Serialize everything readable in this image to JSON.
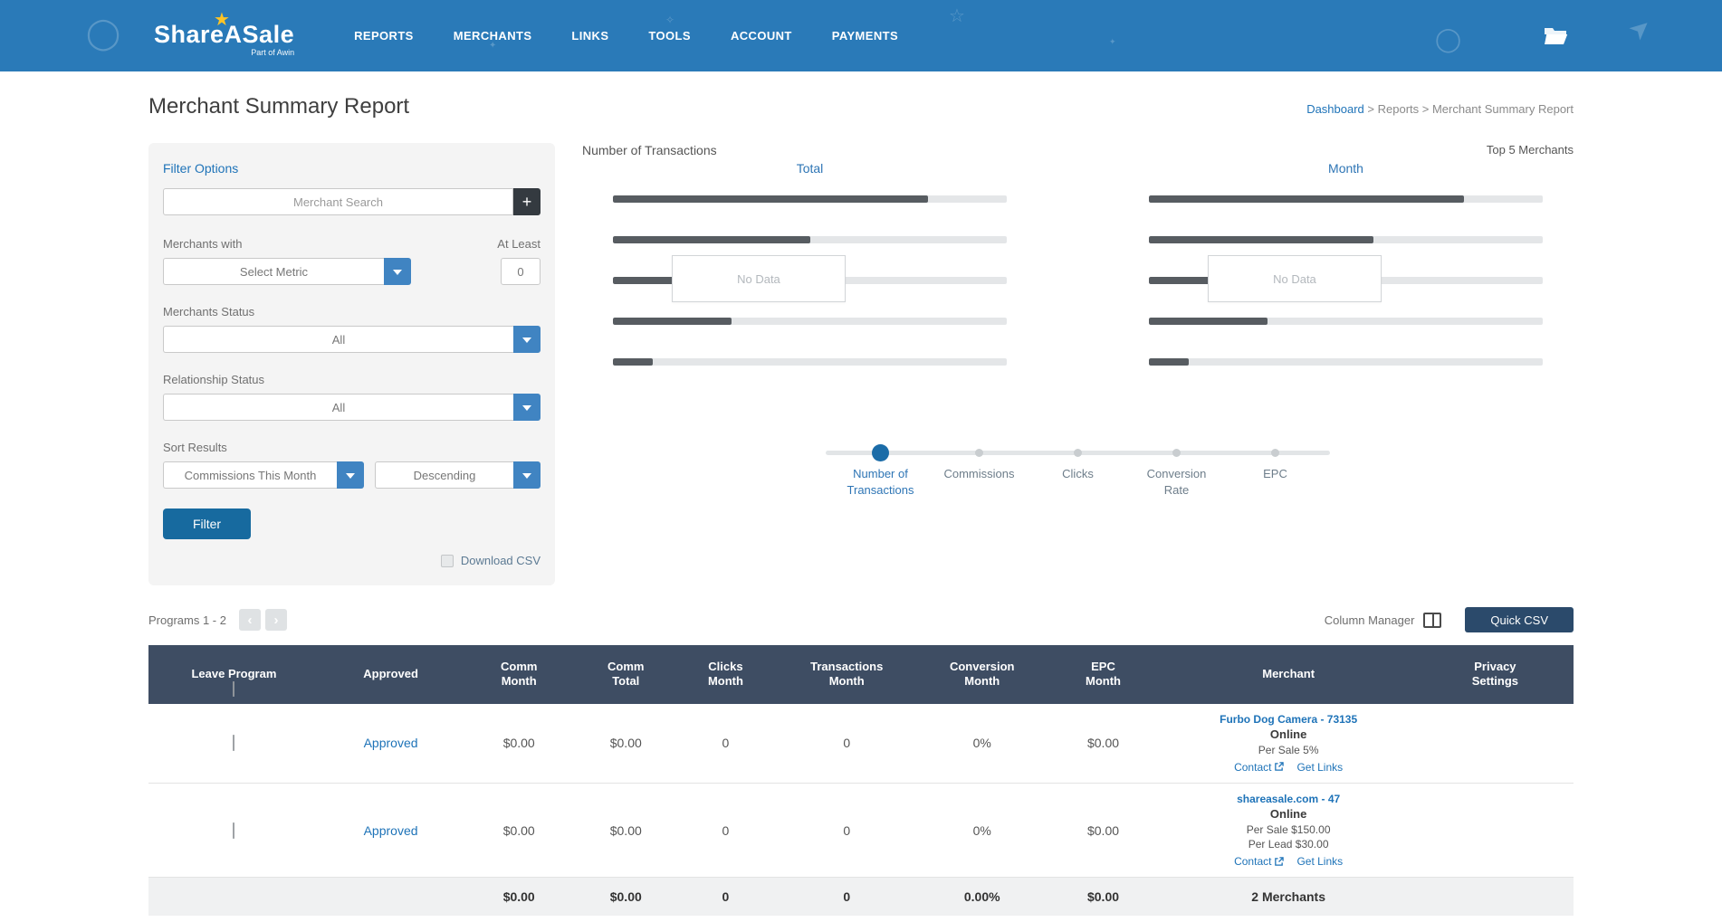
{
  "nav": {
    "brand": {
      "name": "ShareASale",
      "tagline": "Part of Awin"
    },
    "items": [
      {
        "label": "REPORTS"
      },
      {
        "label": "MERCHANTS"
      },
      {
        "label": "LINKS"
      },
      {
        "label": "TOOLS"
      },
      {
        "label": "ACCOUNT"
      },
      {
        "label": "PAYMENTS"
      }
    ]
  },
  "page": {
    "title": "Merchant Summary Report",
    "breadcrumb": {
      "dashboard": "Dashboard",
      "trail": " > Reports > Merchant Summary Report"
    }
  },
  "filter": {
    "title": "Filter Options",
    "search": {
      "placeholder": "Merchant Search",
      "add_button": "+"
    },
    "merchants_with_label": "Merchants with",
    "at_least_label": "At Least",
    "metric_select_value": "Select Metric",
    "at_least_value": "0",
    "merchants_status_label": "Merchants Status",
    "merchants_status_value": "All",
    "relationship_status_label": "Relationship Status",
    "relationship_status_value": "All",
    "sort_results_label": "Sort Results",
    "sort_by_value": "Commissions This Month",
    "sort_direction_value": "Descending",
    "filter_button": "Filter",
    "download_csv_label": "Download CSV"
  },
  "chart_data": {
    "type": "bar",
    "orientation": "horizontal",
    "title": "Number of Transactions",
    "subtitle": "Top 5 Merchants",
    "groups": [
      {
        "label": "Total",
        "overlay": "No Data",
        "values_pct": [
          80,
          50,
          18,
          30,
          10
        ]
      },
      {
        "label": "Month",
        "overlay": "No Data",
        "values_pct": [
          80,
          57,
          17,
          30,
          10
        ]
      }
    ],
    "metric_selector": {
      "options": [
        "Number of Transactions",
        "Commissions",
        "Clicks",
        "Conversion Rate",
        "EPC"
      ],
      "selected": "Number of Transactions"
    }
  },
  "table_section": {
    "pagination_label": "Programs 1 - 2",
    "column_manager_label": "Column Manager",
    "quick_csv_button": "Quick CSV",
    "columns": [
      "Leave Program",
      "Approved",
      "Comm\nMonth",
      "Comm\nTotal",
      "Clicks\nMonth",
      "Transactions\nMonth",
      "Conversion\nMonth",
      "EPC\nMonth",
      "Merchant",
      "Privacy\nSettings"
    ],
    "rows": [
      {
        "approved": "Approved",
        "comm_month": "$0.00",
        "comm_total": "$0.00",
        "clicks_month": "0",
        "transactions_month": "0",
        "conversion_month": "0%",
        "epc_month": "$0.00",
        "merchant": {
          "name": "Furbo Dog Camera - 73135",
          "status": "Online",
          "terms": [
            "Per Sale 5%"
          ],
          "contact_link": "Contact",
          "get_links_link": "Get Links"
        }
      },
      {
        "approved": "Approved",
        "comm_month": "$0.00",
        "comm_total": "$0.00",
        "clicks_month": "0",
        "transactions_month": "0",
        "conversion_month": "0%",
        "epc_month": "$0.00",
        "merchant": {
          "name": "shareasale.com - 47",
          "status": "Online",
          "terms": [
            "Per Sale $150.00",
            "Per Lead $30.00"
          ],
          "contact_link": "Contact",
          "get_links_link": "Get Links"
        }
      }
    ],
    "totals": {
      "comm_month": "$0.00",
      "comm_total": "$0.00",
      "clicks_month": "0",
      "transactions_month": "0",
      "conversion_month": "0.00%",
      "epc_month": "$0.00",
      "merchants_count": "2 Merchants"
    }
  }
}
